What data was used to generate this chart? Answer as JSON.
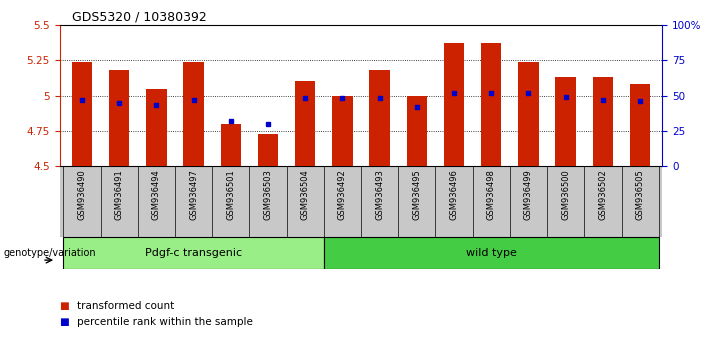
{
  "title": "GDS5320 / 10380392",
  "samples": [
    "GSM936490",
    "GSM936491",
    "GSM936494",
    "GSM936497",
    "GSM936501",
    "GSM936503",
    "GSM936504",
    "GSM936492",
    "GSM936493",
    "GSM936495",
    "GSM936496",
    "GSM936498",
    "GSM936499",
    "GSM936500",
    "GSM936502",
    "GSM936505"
  ],
  "red_values": [
    5.24,
    5.18,
    5.05,
    5.24,
    4.8,
    4.73,
    5.1,
    5.0,
    5.18,
    5.0,
    5.37,
    5.37,
    5.24,
    5.13,
    5.13,
    5.08
  ],
  "blue_pct": [
    47,
    45,
    43,
    47,
    32,
    30,
    48,
    48,
    48,
    42,
    52,
    52,
    52,
    49,
    47,
    46
  ],
  "ylim_left": [
    4.5,
    5.5
  ],
  "ylim_right": [
    0,
    100
  ],
  "yticks_left": [
    4.5,
    4.75,
    5.0,
    5.25,
    5.5
  ],
  "yticks_right": [
    0,
    25,
    50,
    75,
    100
  ],
  "ytick_labels_left": [
    "4.5",
    "4.75",
    "5",
    "5.25",
    "5.5"
  ],
  "ytick_labels_right": [
    "0",
    "25",
    "50",
    "75",
    "100%"
  ],
  "grid_values": [
    4.75,
    5.0,
    5.25
  ],
  "bar_color": "#cc2200",
  "dot_color": "#0000cc",
  "group1_label": "Pdgf-c transgenic",
  "group2_label": "wild type",
  "group1_color": "#99ee88",
  "group2_color": "#44cc44",
  "group1_count": 7,
  "xlabel_genotype": "genotype/variation",
  "legend_red": "transformed count",
  "legend_blue": "percentile rank within the sample",
  "bar_width": 0.55,
  "plot_bg": "#ffffff",
  "axes_bg": "#ffffff",
  "tick_label_bg": "#c8c8c8"
}
